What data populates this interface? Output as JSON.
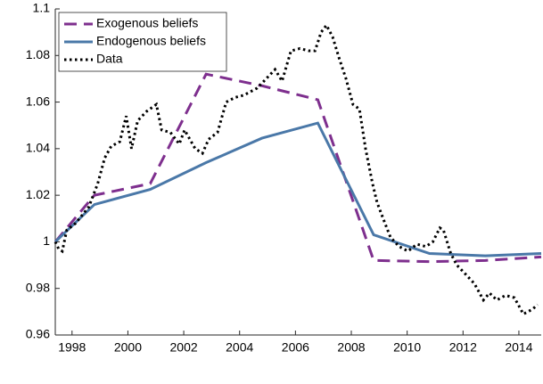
{
  "chart_data": {
    "type": "line",
    "xlim": [
      1997.4,
      2014.8
    ],
    "xticks": [
      1998,
      2000,
      2002,
      2004,
      2006,
      2008,
      2010,
      2012,
      2014
    ],
    "ylim": [
      0.96,
      1.1
    ],
    "yticks": [
      0.96,
      0.98,
      1,
      1.02,
      1.04,
      1.06,
      1.08,
      1.1
    ],
    "legend": "top-left",
    "series": [
      {
        "name": "Exogenous beliefs",
        "color": "#7e2f8e",
        "style": "dashed",
        "x": [
          1997.4,
          1998.8,
          2000.8,
          2002.8,
          2004.8,
          2006.8,
          2008.8,
          2010.8,
          2012.8,
          2014.8
        ],
        "values": [
          1.0,
          1.02,
          1.025,
          1.072,
          1.067,
          1.061,
          0.992,
          0.9915,
          0.992,
          0.9935
        ]
      },
      {
        "name": "Endogenous beliefs",
        "color": "#4a78a8",
        "style": "solid",
        "x": [
          1997.4,
          1998.8,
          2000.8,
          2002.8,
          2004.8,
          2006.8,
          2008.8,
          2010.8,
          2012.8,
          2014.8
        ],
        "values": [
          1.0,
          1.016,
          1.0225,
          1.034,
          1.0445,
          1.051,
          1.003,
          0.995,
          0.994,
          0.995
        ]
      },
      {
        "name": "Data",
        "color": "#000000",
        "style": "dotted",
        "x": [
          1997.4,
          1997.52,
          1997.65,
          1997.81,
          1998.13,
          1998.6,
          1998.92,
          1999.17,
          1999.4,
          1999.71,
          1999.94,
          2000.13,
          2000.35,
          2000.67,
          2001.02,
          2001.21,
          2001.52,
          2001.84,
          2002.03,
          2002.41,
          2002.67,
          2002.89,
          2003.21,
          2003.52,
          2003.84,
          2004.16,
          2004.63,
          2004.95,
          2005.27,
          2005.52,
          2005.84,
          2006.16,
          2006.48,
          2006.7,
          2006.92,
          2007.11,
          2007.33,
          2007.56,
          2007.81,
          2008.06,
          2008.29,
          2008.51,
          2008.76,
          2008.92,
          2009.14,
          2009.4,
          2009.71,
          2010.03,
          2010.35,
          2010.67,
          2010.92,
          2011.17,
          2011.3,
          2011.56,
          2011.78,
          2012.1,
          2012.41,
          2012.73,
          2012.95,
          2013.21,
          2013.52,
          2013.84,
          2014.16,
          2014.48,
          2014.67
        ],
        "values": [
          1.0,
          0.997,
          0.996,
          1.005,
          1.008,
          1.015,
          1.025,
          1.036,
          1.041,
          1.043,
          1.054,
          1.04,
          1.052,
          1.056,
          1.059,
          1.048,
          1.047,
          1.042,
          1.048,
          1.04,
          1.038,
          1.044,
          1.047,
          1.06,
          1.062,
          1.063,
          1.066,
          1.07,
          1.074,
          1.069,
          1.082,
          1.083,
          1.082,
          1.082,
          1.09,
          1.093,
          1.088,
          1.079,
          1.07,
          1.059,
          1.057,
          1.04,
          1.025,
          1.017,
          1.01,
          1.002,
          0.998,
          0.996,
          0.999,
          0.998,
          1.0,
          1.006,
          1.005,
          0.995,
          0.99,
          0.986,
          0.982,
          0.975,
          0.978,
          0.975,
          0.977,
          0.976,
          0.969,
          0.971,
          0.973
        ]
      }
    ]
  }
}
